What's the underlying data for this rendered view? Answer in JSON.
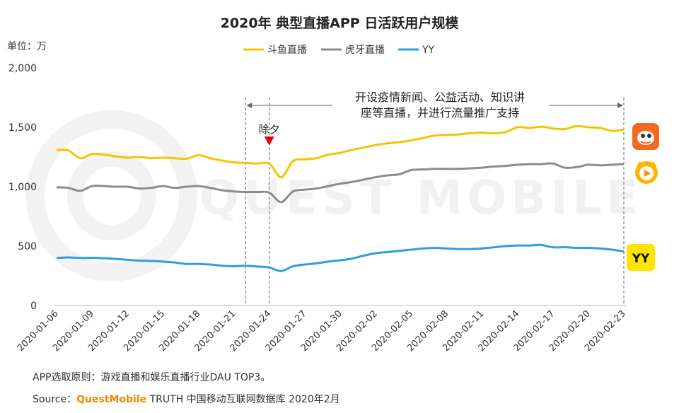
{
  "chart_data": {
    "type": "line",
    "title": "2020年 典型直播APP 日活跃用户规模",
    "unit_label": "单位：万",
    "ylim": [
      0,
      2000
    ],
    "yticks": [
      0,
      500,
      1000,
      1500,
      2000
    ],
    "ytick_labels": [
      "0",
      "500",
      "1,000",
      "1,500",
      "2,000"
    ],
    "x": [
      "2020-01-06",
      "2020-01-07",
      "2020-01-08",
      "2020-01-09",
      "2020-01-10",
      "2020-01-11",
      "2020-01-12",
      "2020-01-13",
      "2020-01-14",
      "2020-01-15",
      "2020-01-16",
      "2020-01-17",
      "2020-01-18",
      "2020-01-19",
      "2020-01-20",
      "2020-01-21",
      "2020-01-22",
      "2020-01-23",
      "2020-01-24",
      "2020-01-25",
      "2020-01-26",
      "2020-01-27",
      "2020-01-28",
      "2020-01-29",
      "2020-01-30",
      "2020-01-31",
      "2020-02-01",
      "2020-02-02",
      "2020-02-03",
      "2020-02-04",
      "2020-02-05",
      "2020-02-06",
      "2020-02-07",
      "2020-02-08",
      "2020-02-09",
      "2020-02-10",
      "2020-02-11",
      "2020-02-12",
      "2020-02-13",
      "2020-02-14",
      "2020-02-15",
      "2020-02-16",
      "2020-02-17",
      "2020-02-18",
      "2020-02-19",
      "2020-02-20",
      "2020-02-21",
      "2020-02-22",
      "2020-02-23"
    ],
    "xtick_labels": [
      "2020-01-06",
      "2020-01-09",
      "2020-01-12",
      "2020-01-15",
      "2020-01-18",
      "2020-01-21",
      "2020-01-24",
      "2020-01-27",
      "2020-01-30",
      "2020-02-02",
      "2020-02-05",
      "2020-02-08",
      "2020-02-11",
      "2020-02-14",
      "2020-02-17",
      "2020-02-20",
      "2020-02-23"
    ],
    "series": [
      {
        "name": "斗鱼直播",
        "color": "#f5c400",
        "values": [
          1310,
          1305,
          1240,
          1275,
          1270,
          1255,
          1245,
          1250,
          1240,
          1245,
          1240,
          1235,
          1265,
          1240,
          1220,
          1205,
          1200,
          1195,
          1195,
          1080,
          1215,
          1230,
          1240,
          1270,
          1285,
          1310,
          1330,
          1350,
          1365,
          1375,
          1390,
          1410,
          1430,
          1435,
          1440,
          1450,
          1455,
          1450,
          1460,
          1500,
          1495,
          1505,
          1490,
          1485,
          1510,
          1500,
          1495,
          1470,
          1480
        ]
      },
      {
        "name": "虎牙直播",
        "color": "#8c8c8c",
        "values": [
          995,
          990,
          965,
          1005,
          1005,
          1000,
          1000,
          985,
          990,
          1005,
          990,
          1000,
          1005,
          990,
          970,
          960,
          955,
          955,
          950,
          870,
          960,
          975,
          985,
          1005,
          1025,
          1040,
          1060,
          1080,
          1095,
          1105,
          1140,
          1145,
          1150,
          1150,
          1150,
          1155,
          1160,
          1170,
          1175,
          1185,
          1190,
          1190,
          1195,
          1160,
          1165,
          1185,
          1180,
          1185,
          1190
        ]
      },
      {
        "name": "YY",
        "color": "#2e9fd9",
        "values": [
          400,
          405,
          400,
          402,
          398,
          392,
          385,
          378,
          375,
          370,
          362,
          350,
          350,
          345,
          335,
          330,
          335,
          328,
          320,
          290,
          330,
          345,
          355,
          370,
          380,
          395,
          420,
          440,
          450,
          460,
          470,
          480,
          485,
          480,
          475,
          475,
          480,
          490,
          500,
          505,
          505,
          510,
          490,
          490,
          485,
          485,
          480,
          470,
          455
        ]
      }
    ],
    "annotations": {
      "eve_label": "除夕",
      "eve_date": "2020-01-24",
      "range_start": "2020-01-22",
      "range_end": "2020-02-23",
      "range_text_line1": "开设疫情新闻、公益活动、知识讲",
      "range_text_line2": "座等直播，并进行流量推广支持"
    },
    "legend_position": "top-center",
    "grid": false
  },
  "watermark": "QUEST MOBILE",
  "app_icons": {
    "douyu": "douyu-logo-icon",
    "huya": "huya-logo-icon",
    "yy": "yy-logo-icon",
    "yy_text": "YY"
  },
  "footer": {
    "note": "APP选取原则：游戏直播和娱乐直播行业DAU TOP3。",
    "source_prefix": "Source：",
    "source_brand": "QuestMobile",
    "source_rest": " TRUTH 中国移动互联网数据库 2020年2月"
  }
}
